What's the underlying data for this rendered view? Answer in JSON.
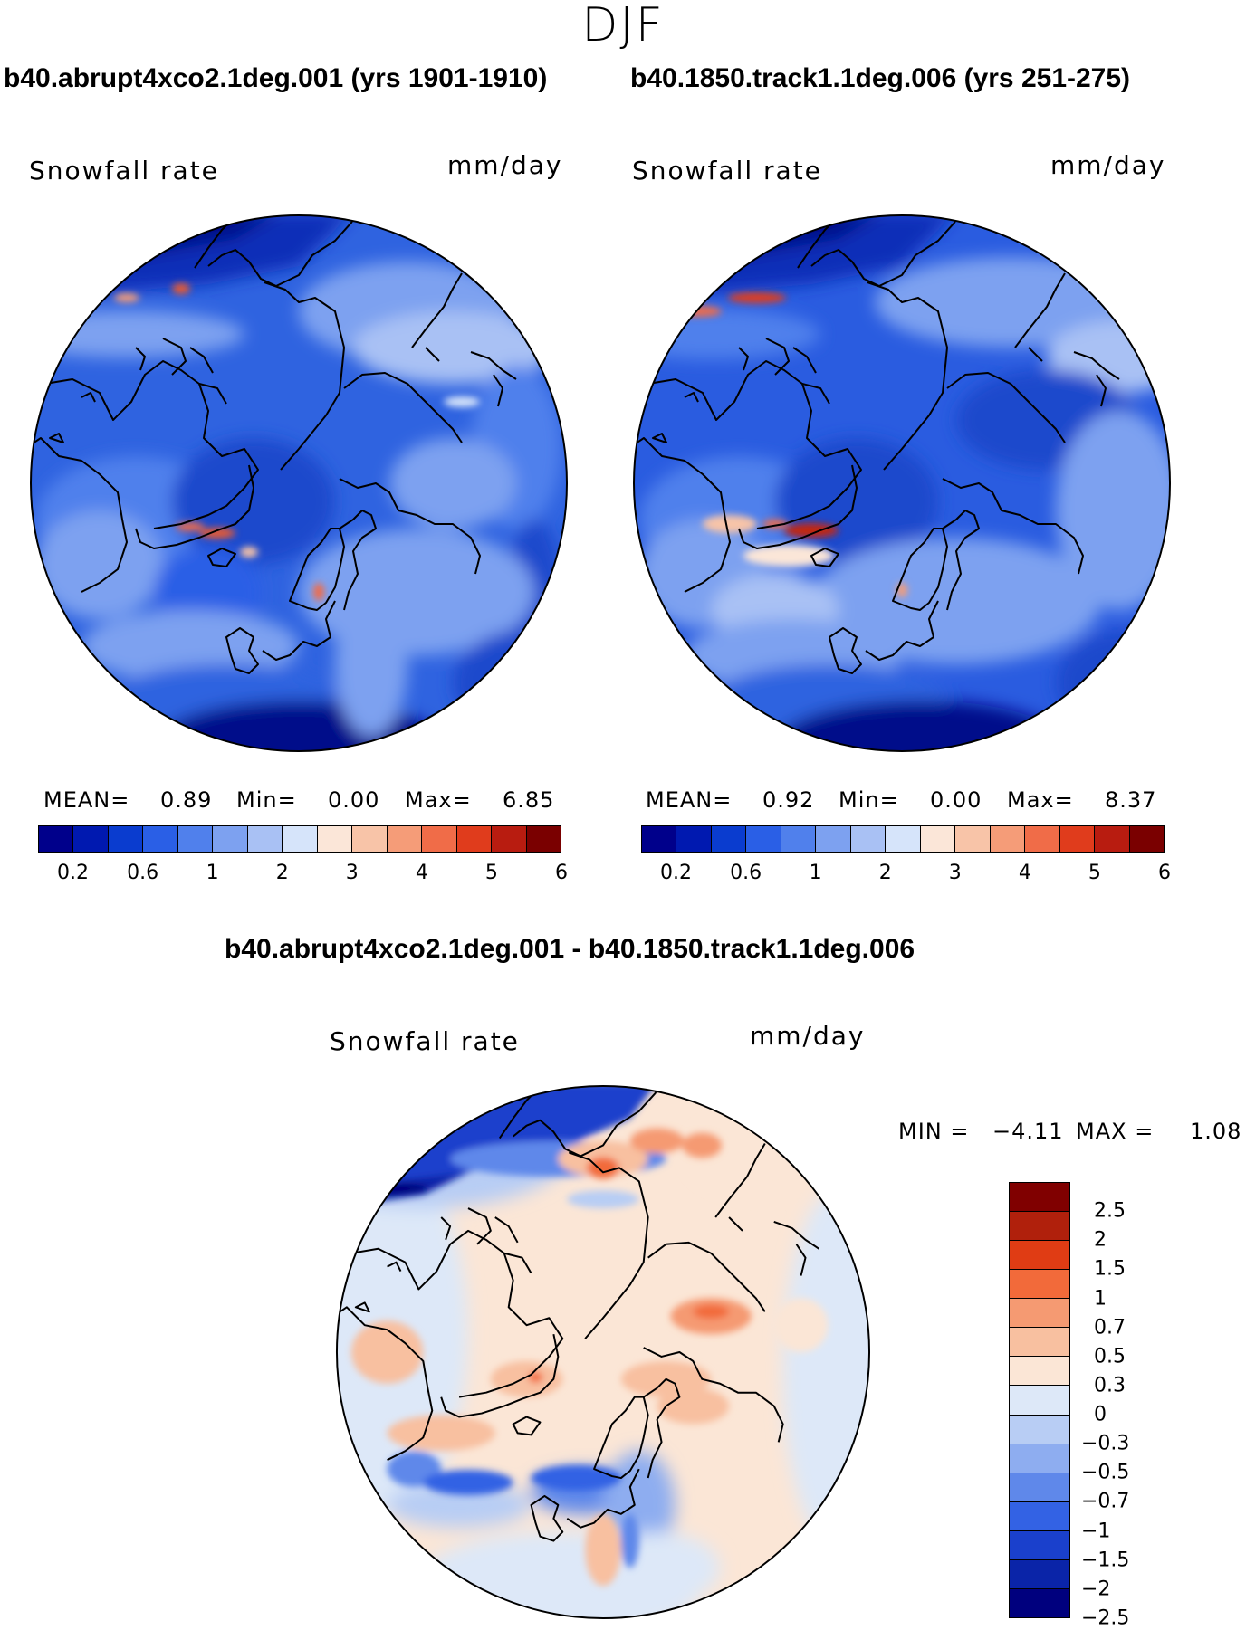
{
  "figure": {
    "season": "DJF",
    "variable": "Snowfall rate",
    "units": "mm/day"
  },
  "panels": {
    "left": {
      "title": "b40.abrupt4xco2.1deg.001 (yrs 1901-1910)",
      "variable": "Snowfall rate",
      "units": "mm/day",
      "mean_label": "MEAN=",
      "mean": "0.89",
      "min_label": "Min=",
      "min": "0.00",
      "max_label": "Max=",
      "max": "6.85"
    },
    "right": {
      "title": "b40.1850.track1.1deg.006 (yrs 251-275)",
      "variable": "Snowfall rate",
      "units": "mm/day",
      "mean_label": "MEAN=",
      "mean": "0.92",
      "min_label": "Min=",
      "min": "0.00",
      "max_label": "Max=",
      "max": "8.37"
    },
    "diff": {
      "title": "b40.abrupt4xco2.1deg.001 - b40.1850.track1.1deg.006",
      "variable": "Snowfall rate",
      "units": "mm/day",
      "min_label": "MIN =",
      "min": "−4.11",
      "max_label": "MAX =",
      "max": "1.08"
    }
  },
  "colorbars": {
    "absolute": {
      "colors": [
        "#00008b",
        "#0019b0",
        "#0a3ccf",
        "#2a5fe6",
        "#5080ec",
        "#7da1f0",
        "#a9c1f4",
        "#d6e4fa",
        "#fbe6d8",
        "#f8c4a8",
        "#f59c78",
        "#f06c48",
        "#e03c1c",
        "#b81c10",
        "#7a0000"
      ],
      "tick_labels": [
        "0.2",
        "0.6",
        "1",
        "2",
        "3",
        "4",
        "5",
        "6"
      ]
    },
    "difference": {
      "colors_top_to_bottom": [
        "#800000",
        "#b0200c",
        "#e03c14",
        "#f26a3a",
        "#f59a72",
        "#f8c0a0",
        "#fbe6d6",
        "#dde8f8",
        "#b8cdf4",
        "#8eadf0",
        "#5f88ea",
        "#3362e4",
        "#1a40cc",
        "#0a24a8",
        "#00007e"
      ],
      "tick_labels": [
        "2.5",
        "2",
        "1.5",
        "1",
        "0.7",
        "0.5",
        "0.3",
        "0",
        "−0.3",
        "−0.5",
        "−0.7",
        "−1",
        "−1.5",
        "−2",
        "−2.5"
      ]
    }
  }
}
